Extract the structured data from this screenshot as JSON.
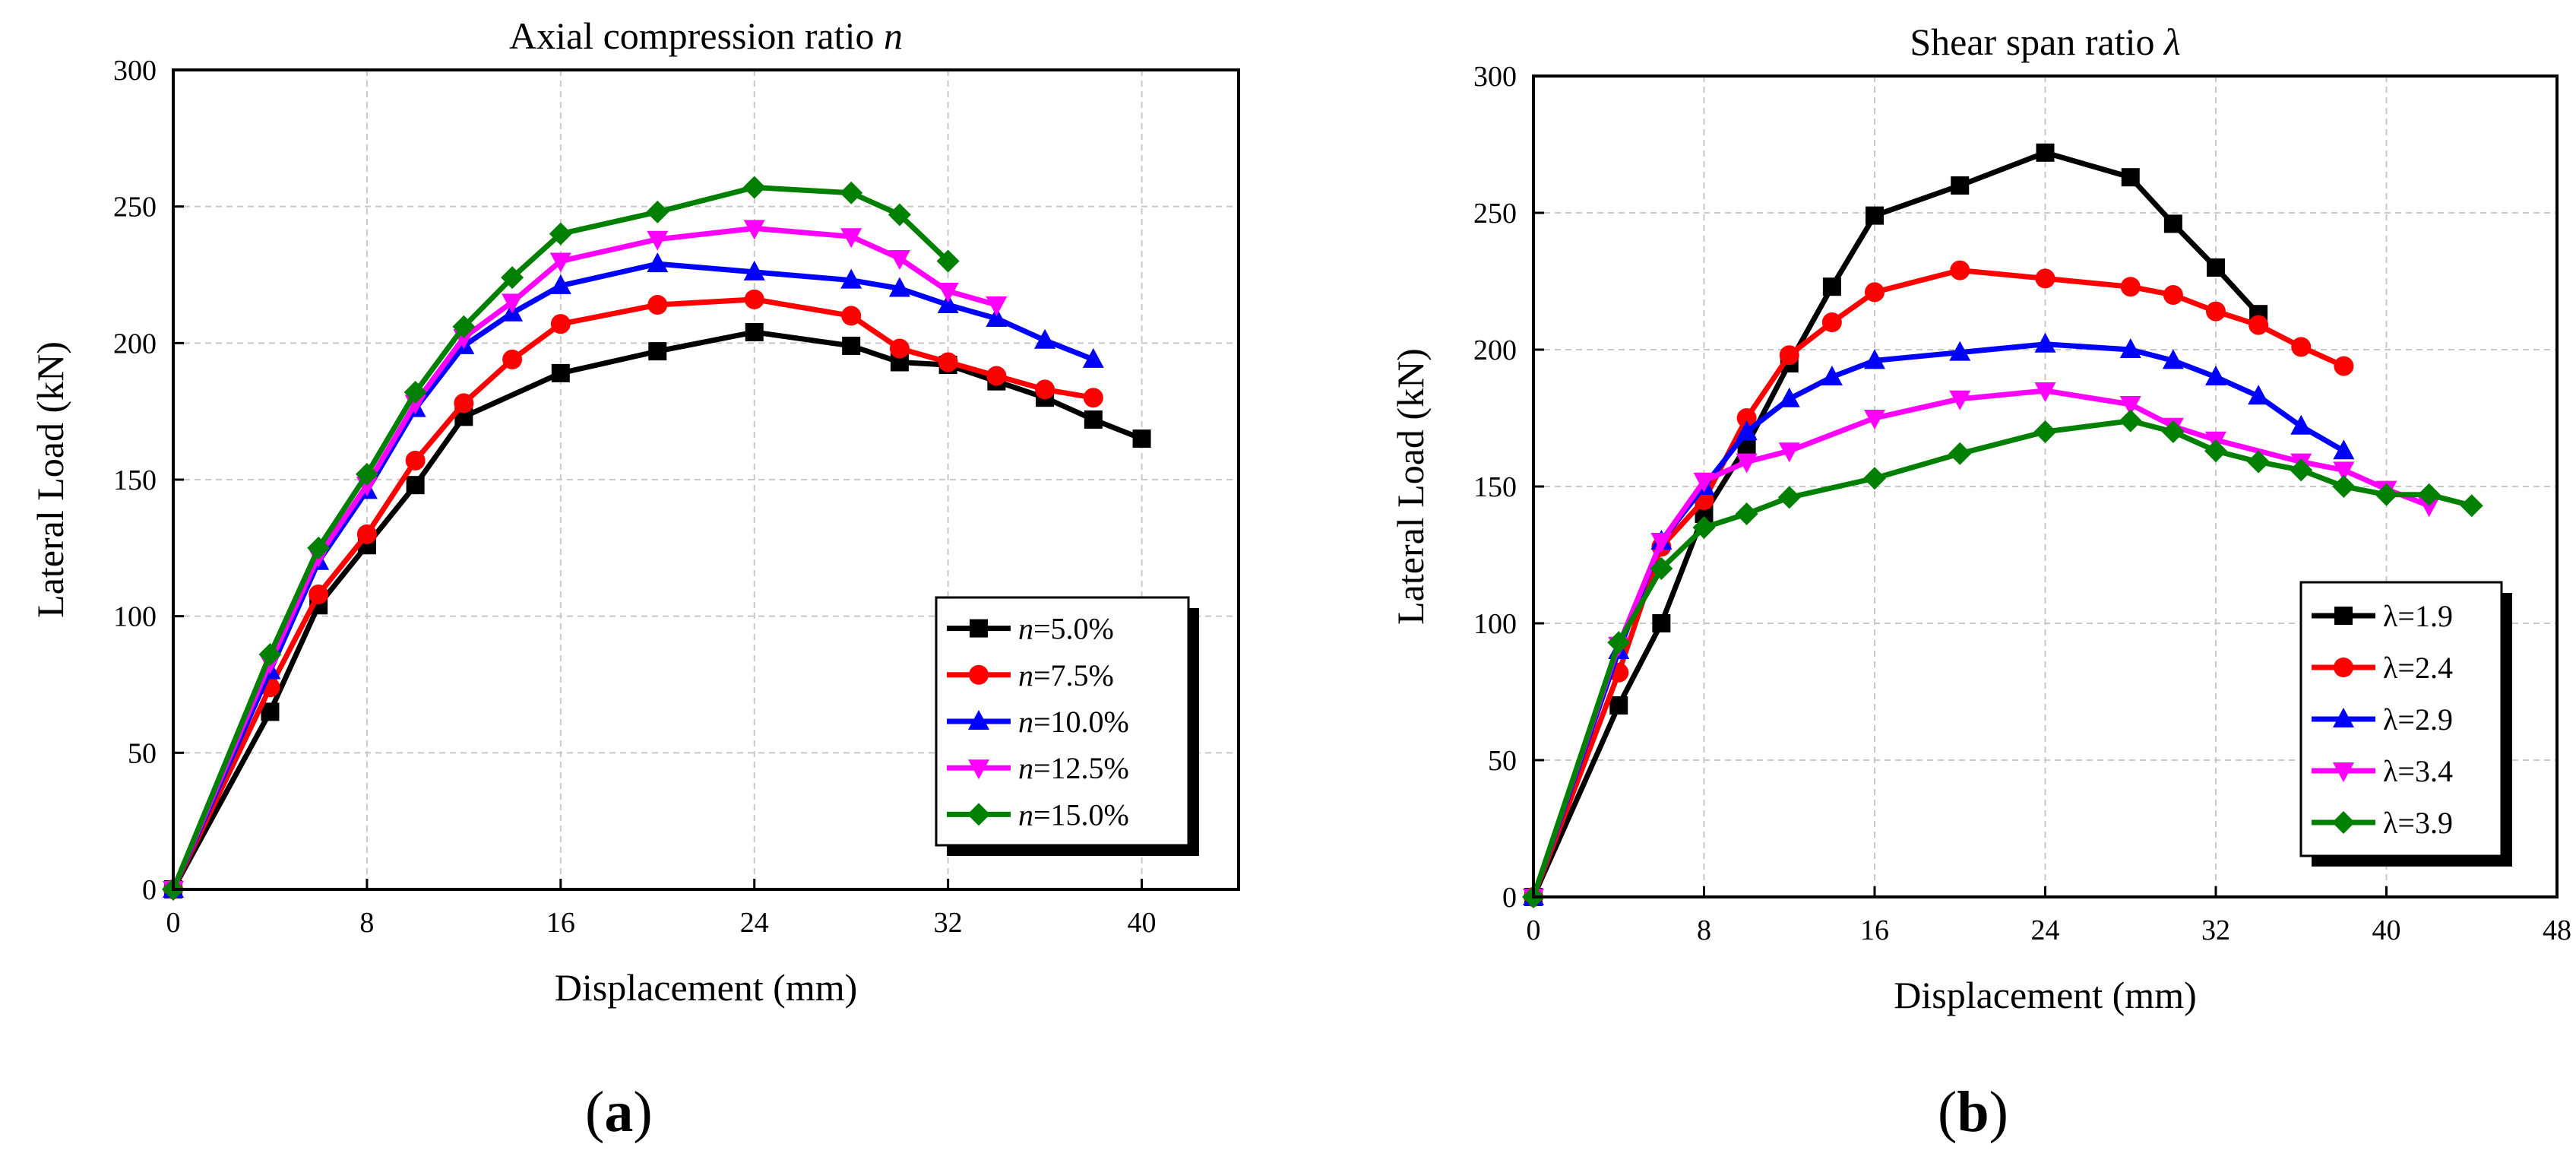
{
  "panels": [
    {
      "letter": "a"
    },
    {
      "letter": "b"
    }
  ],
  "chart_data": [
    {
      "type": "line",
      "title": "Axial compression ratio ",
      "title_italic": "n",
      "xlabel": "Displacement (mm)",
      "ylabel": "Lateral Load (kN)",
      "xlim": [
        0,
        44
      ],
      "ylim": [
        0,
        300
      ],
      "xticks": [
        0,
        8,
        16,
        24,
        32,
        40
      ],
      "yticks": [
        0,
        50,
        100,
        150,
        200,
        250,
        300
      ],
      "grid": true,
      "legend_position": "bottom-right",
      "series": [
        {
          "name": "n=5.0%",
          "name_prefix": "n",
          "name_suffix": "=5.0%",
          "color": "#000000",
          "marker": "square",
          "x": [
            0,
            4,
            6,
            8,
            10,
            12,
            16,
            20,
            24,
            28,
            30,
            32,
            34,
            36,
            38,
            40
          ],
          "y": [
            0,
            65,
            104,
            126,
            148,
            173,
            189,
            197,
            204,
            199,
            193,
            192,
            186,
            180,
            172,
            165
          ]
        },
        {
          "name": "n=7.5%",
          "name_prefix": "n",
          "name_suffix": "=7.5%",
          "color": "#ff0000",
          "marker": "circle",
          "x": [
            0,
            4,
            6,
            8,
            10,
            12,
            14,
            16,
            20,
            24,
            28,
            30,
            32,
            34,
            36,
            38
          ],
          "y": [
            0,
            74,
            108,
            130,
            157,
            178,
            194,
            207,
            214,
            216,
            210,
            198,
            193,
            188,
            183,
            180
          ]
        },
        {
          "name": "n=10.0%",
          "name_prefix": "n",
          "name_suffix": "=10.0%",
          "color": "#0000ff",
          "marker": "triangle-up",
          "x": [
            0,
            4,
            6,
            8,
            10,
            12,
            14,
            16,
            20,
            24,
            28,
            30,
            32,
            34,
            36,
            38
          ],
          "y": [
            0,
            80,
            120,
            146,
            176,
            199,
            211,
            221,
            229,
            226,
            223,
            220,
            214,
            209,
            201,
            194
          ]
        },
        {
          "name": "n=12.5%",
          "name_prefix": "n",
          "name_suffix": "=12.5%",
          "color": "#ff00ff",
          "marker": "triangle-down",
          "x": [
            0,
            4,
            6,
            8,
            10,
            12,
            14,
            16,
            20,
            24,
            28,
            30,
            32,
            34
          ],
          "y": [
            0,
            83,
            122,
            148,
            178,
            202,
            215,
            230,
            238,
            242,
            239,
            231,
            219,
            214
          ]
        },
        {
          "name": "n=15.0%",
          "name_prefix": "n",
          "name_suffix": "=15.0%",
          "color": "#008000",
          "marker": "diamond",
          "x": [
            0,
            4,
            6,
            8,
            10,
            12,
            14,
            16,
            20,
            24,
            28,
            30,
            32
          ],
          "y": [
            0,
            86,
            125,
            152,
            182,
            206,
            224,
            240,
            248,
            257,
            255,
            247,
            230
          ]
        }
      ]
    },
    {
      "type": "line",
      "title": "Shear span ratio ",
      "title_italic": "λ",
      "xlabel": "Displacement (mm)",
      "ylabel": "Lateral Load (kN)",
      "xlim": [
        0,
        48
      ],
      "ylim": [
        0,
        300
      ],
      "xticks": [
        0,
        8,
        16,
        24,
        32,
        40,
        48
      ],
      "yticks": [
        0,
        50,
        100,
        150,
        200,
        250,
        300
      ],
      "grid": true,
      "legend_position": "bottom-right",
      "series": [
        {
          "name": "λ=1.9",
          "color": "#000000",
          "marker": "square",
          "x": [
            0,
            4,
            6,
            8,
            10,
            12,
            14,
            16,
            20,
            24,
            28,
            30,
            32,
            34
          ],
          "y": [
            0,
            70,
            100,
            140,
            165,
            195,
            223,
            249,
            260,
            272,
            263,
            246,
            230,
            213
          ]
        },
        {
          "name": "λ=2.4",
          "color": "#ff0000",
          "marker": "circle",
          "x": [
            0,
            4,
            6,
            8,
            10,
            12,
            14,
            16,
            20,
            24,
            28,
            30,
            32,
            34,
            36,
            38
          ],
          "y": [
            0,
            82,
            128,
            145,
            175,
            198,
            210,
            221,
            229,
            226,
            223,
            220,
            214,
            209,
            201,
            194
          ]
        },
        {
          "name": "λ=2.9",
          "color": "#0000ff",
          "marker": "triangle-up",
          "x": [
            0,
            4,
            6,
            8,
            10,
            12,
            14,
            16,
            20,
            24,
            28,
            30,
            32,
            34,
            36,
            38
          ],
          "y": [
            0,
            90,
            130,
            150,
            170,
            182,
            190,
            196,
            199,
            202,
            200,
            196,
            190,
            183,
            172,
            163
          ]
        },
        {
          "name": "λ=3.4",
          "color": "#ff00ff",
          "marker": "triangle-down",
          "x": [
            0,
            4,
            6,
            8,
            10,
            12,
            16,
            20,
            24,
            28,
            30,
            32,
            36,
            38,
            40,
            42
          ],
          "y": [
            0,
            92,
            130,
            152,
            159,
            163,
            175,
            182,
            185,
            180,
            172,
            167,
            159,
            156,
            149,
            143
          ]
        },
        {
          "name": "λ=3.9",
          "color": "#008000",
          "marker": "diamond",
          "x": [
            0,
            4,
            6,
            8,
            10,
            12,
            16,
            20,
            24,
            28,
            30,
            32,
            34,
            36,
            38,
            40,
            42,
            44
          ],
          "y": [
            0,
            93,
            120,
            135,
            140,
            146,
            153,
            162,
            170,
            174,
            170,
            163,
            159,
            156,
            150,
            147,
            147,
            143
          ]
        }
      ]
    }
  ]
}
